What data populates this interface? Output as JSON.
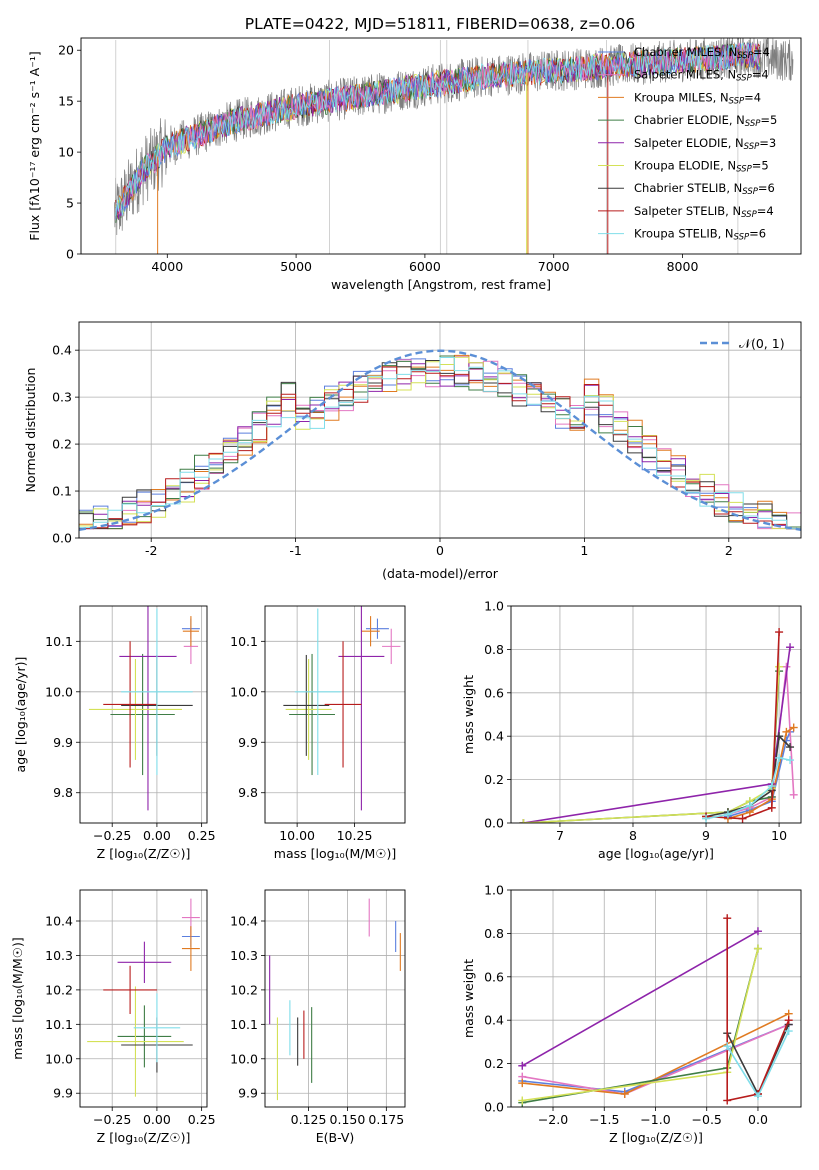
{
  "title": "PLATE=0422, MJD=51811, FIBERID=0638, z=0.06",
  "colors": {
    "Chabrier MILES": "#5b7fde",
    "Salpeter MILES": "#e377c2",
    "Kroupa MILES": "#e07b22",
    "Chabrier ELODIE": "#3f7d46",
    "Salpeter ELODIE": "#8e24aa",
    "Kroupa ELODIE": "#d4e157",
    "Chabrier STELIB": "#3a3a3a",
    "Salpeter STELIB": "#b71c1c",
    "Kroupa STELIB": "#80deea",
    "gaussian": "#5b8fd6",
    "grid": "#b0b0b0"
  },
  "chart_data": [
    {
      "type": "line",
      "name": "spectrum",
      "xlabel": "wavelength [Angstrom, rest frame]",
      "ylabel": "Flux [fλ10⁻¹⁷ erg cm⁻² s⁻¹ A⁻¹]",
      "xlim": [
        3330,
        8920
      ],
      "ylim": [
        0,
        21.2
      ],
      "xticks": [
        4000,
        5000,
        6000,
        7000,
        8000
      ],
      "yticks": [
        0,
        5,
        10,
        15,
        20
      ],
      "grid": false,
      "legend_position": "right",
      "data_trend": {
        "x": [
          3600,
          3800,
          4000,
          4200,
          4500,
          5000,
          5500,
          6000,
          6500,
          7000,
          7500,
          8000,
          8500,
          8800
        ],
        "y": [
          4,
          8,
          10.5,
          11.5,
          13,
          14.5,
          15.5,
          16.5,
          17.5,
          18,
          18.5,
          19,
          19.5,
          19
        ]
      },
      "series": [
        {
          "name": "Chabrier MILES, N_SSP=4"
        },
        {
          "name": "Salpeter MILES, N_SSP=4"
        },
        {
          "name": "Kroupa MILES, N_SSP=4"
        },
        {
          "name": "Chabrier ELODIE, N_SSP=5"
        },
        {
          "name": "Salpeter ELODIE, N_SSP=3"
        },
        {
          "name": "Kroupa ELODIE, N_SSP=5"
        },
        {
          "name": "Chabrier STELIB, N_SSP=6"
        },
        {
          "name": "Salpeter STELIB, N_SSP=4"
        },
        {
          "name": "Kroupa STELIB, N_SSP=6"
        }
      ]
    },
    {
      "type": "histogram",
      "name": "residuals",
      "xlabel": "(data-model)/error",
      "ylabel": "Normed distribution",
      "xlim": [
        -2.5,
        2.5
      ],
      "ylim": [
        0,
        0.46
      ],
      "xticks": [
        -2,
        -1,
        0,
        1,
        2
      ],
      "yticks": [
        0.0,
        0.1,
        0.2,
        0.3,
        0.4
      ],
      "grid": true,
      "legend": [
        {
          "name": "𝒩(0, 1)",
          "style": "dashed"
        }
      ],
      "legend_position": "upper right",
      "bin_width": 0.1
    },
    {
      "type": "errorbar",
      "name": "age-vs-Z",
      "xlabel": "Z [log₁₀(Z/Z☉)]",
      "ylabel": "age  [log₁₀(age/yr)]",
      "xlim": [
        -0.43,
        0.28
      ],
      "ylim": [
        9.74,
        10.17
      ],
      "xticks": [
        -0.25,
        0.0,
        0.25
      ],
      "xticklabels": [
        "−0.25",
        "0.00",
        "0.25"
      ],
      "yticks": [
        9.8,
        9.9,
        10.0,
        10.1
      ],
      "grid": true,
      "points": [
        {
          "series": "Chabrier MILES",
          "x": 0.19,
          "y": 10.125,
          "xerr": 0.05,
          "yerr": 0.02
        },
        {
          "series": "Salpeter MILES",
          "x": 0.19,
          "y": 10.09,
          "xerr": 0.04,
          "yerr": 0.035
        },
        {
          "series": "Kroupa MILES",
          "x": 0.19,
          "y": 10.12,
          "xerr": 0.045,
          "yerr": 0.03
        },
        {
          "series": "Chabrier ELODIE",
          "x": -0.08,
          "y": 9.955,
          "xerr": 0.18,
          "yerr": 0.12
        },
        {
          "series": "Salpeter ELODIE",
          "x": -0.05,
          "y": 10.07,
          "xerr": 0.16,
          "yerr": 0.305
        },
        {
          "series": "Kroupa ELODIE",
          "x": -0.12,
          "y": 9.965,
          "xerr": 0.26,
          "yerr": 0.1
        },
        {
          "series": "Chabrier STELIB",
          "x": 0.0,
          "y": 9.973,
          "xerr": 0.2,
          "yerr": 0.1
        },
        {
          "series": "Salpeter STELIB",
          "x": -0.15,
          "y": 9.975,
          "xerr": 0.15,
          "yerr": 0.125
        },
        {
          "series": "Kroupa STELIB",
          "x": 0.0,
          "y": 10.0,
          "xerr": 0.2,
          "yerr": 0.165
        }
      ]
    },
    {
      "type": "errorbar",
      "name": "age-vs-mass",
      "xlabel": "mass [log₁₀(M/M☉)]",
      "ylabel": "",
      "xlim": [
        9.86,
        10.47
      ],
      "ylim": [
        9.74,
        10.17
      ],
      "xticks": [
        10.0,
        10.25
      ],
      "xticklabels": [
        "10.00",
        "10.25"
      ],
      "yticks": [
        9.8,
        9.9,
        10.0,
        10.1
      ],
      "grid": true,
      "points": [
        {
          "series": "Chabrier MILES",
          "x": 10.35,
          "y": 10.125,
          "xerr": 0.05,
          "yerr": 0.02
        },
        {
          "series": "Salpeter MILES",
          "x": 10.41,
          "y": 10.09,
          "xerr": 0.04,
          "yerr": 0.035
        },
        {
          "series": "Kroupa MILES",
          "x": 10.32,
          "y": 10.12,
          "xerr": 0.04,
          "yerr": 0.03
        },
        {
          "series": "Chabrier ELODIE",
          "x": 10.065,
          "y": 9.955,
          "xerr": 0.1,
          "yerr": 0.12
        },
        {
          "series": "Salpeter ELODIE",
          "x": 10.28,
          "y": 10.07,
          "xerr": 0.1,
          "yerr": 0.305
        },
        {
          "series": "Kroupa ELODIE",
          "x": 10.05,
          "y": 9.965,
          "xerr": 0.1,
          "yerr": 0.1
        },
        {
          "series": "Chabrier STELIB",
          "x": 10.04,
          "y": 9.973,
          "xerr": 0.1,
          "yerr": 0.1
        },
        {
          "series": "Salpeter STELIB",
          "x": 10.2,
          "y": 9.975,
          "xerr": 0.08,
          "yerr": 0.125
        },
        {
          "series": "Kroupa STELIB",
          "x": 10.09,
          "y": 10.0,
          "xerr": 0.1,
          "yerr": 0.165
        }
      ]
    },
    {
      "type": "line",
      "name": "weight-vs-age",
      "xlabel": "age  [log₁₀(age/yr)]",
      "ylabel": "mass weight",
      "xlim": [
        6.33,
        10.3
      ],
      "ylim": [
        0,
        1.0
      ],
      "xticks": [
        7,
        8,
        9,
        10
      ],
      "yticks": [
        0.0,
        0.2,
        0.4,
        0.6,
        0.8,
        1.0
      ],
      "grid": true,
      "series": [
        {
          "name": "Chabrier MILES",
          "x": [
            9.3,
            9.6,
            9.9,
            10.1,
            10.15
          ],
          "y": [
            0.03,
            0.06,
            0.1,
            0.38,
            0.42
          ]
        },
        {
          "name": "Salpeter MILES",
          "x": [
            9.3,
            9.6,
            9.9,
            10.1,
            10.2
          ],
          "y": [
            0.04,
            0.07,
            0.12,
            0.72,
            0.13
          ]
        },
        {
          "name": "Kroupa MILES",
          "x": [
            9.3,
            9.6,
            9.9,
            10.1,
            10.2
          ],
          "y": [
            0.02,
            0.05,
            0.11,
            0.42,
            0.44
          ]
        },
        {
          "name": "Chabrier ELODIE",
          "x": [
            6.5,
            9.3,
            9.6,
            9.9,
            10.0
          ],
          "y": [
            0.0,
            0.05,
            0.1,
            0.12,
            0.7
          ]
        },
        {
          "name": "Salpeter ELODIE",
          "x": [
            6.5,
            9.9,
            10.15
          ],
          "y": [
            0.0,
            0.18,
            0.81
          ]
        },
        {
          "name": "Kroupa ELODIE",
          "x": [
            6.5,
            9.3,
            9.6,
            9.9,
            10.0
          ],
          "y": [
            0.0,
            0.05,
            0.1,
            0.16,
            0.72
          ]
        },
        {
          "name": "Chabrier STELIB",
          "x": [
            9.0,
            9.3,
            9.6,
            9.9,
            10.0,
            10.15
          ],
          "y": [
            0.03,
            0.05,
            0.08,
            0.15,
            0.4,
            0.35
          ]
        },
        {
          "name": "Salpeter STELIB",
          "x": [
            9.0,
            9.5,
            9.9,
            10.0
          ],
          "y": [
            0.03,
            0.02,
            0.07,
            0.88
          ]
        },
        {
          "name": "Kroupa STELIB",
          "x": [
            9.0,
            9.3,
            9.6,
            9.9,
            10.0,
            10.15
          ],
          "y": [
            0.02,
            0.04,
            0.08,
            0.17,
            0.3,
            0.29
          ]
        }
      ]
    },
    {
      "type": "errorbar",
      "name": "mass-vs-Z",
      "xlabel": "Z [log₁₀(Z/Z☉)]",
      "ylabel": "mass [log₁₀(M/M☉)]",
      "xlim": [
        -0.43,
        0.28
      ],
      "ylim": [
        9.86,
        10.49
      ],
      "xticks": [
        -0.25,
        0.0,
        0.25
      ],
      "xticklabels": [
        "−0.25",
        "0.00",
        "0.25"
      ],
      "yticks": [
        9.9,
        10.0,
        10.1,
        10.2,
        10.3,
        10.4
      ],
      "grid": true,
      "points": [
        {
          "series": "Chabrier MILES",
          "x": 0.19,
          "y": 10.355,
          "xerr": 0.05,
          "yerr": 0.03
        },
        {
          "series": "Salpeter MILES",
          "x": 0.19,
          "y": 10.41,
          "xerr": 0.05,
          "yerr": 0.055
        },
        {
          "series": "Kroupa MILES",
          "x": 0.19,
          "y": 10.32,
          "xerr": 0.05,
          "yerr": 0.065
        },
        {
          "series": "Chabrier ELODIE",
          "x": -0.07,
          "y": 10.065,
          "xerr": 0.15,
          "yerr": 0.09
        },
        {
          "series": "Salpeter ELODIE",
          "x": -0.07,
          "y": 10.28,
          "xerr": 0.15,
          "yerr": 0.06
        },
        {
          "series": "Kroupa ELODIE",
          "x": -0.12,
          "y": 10.05,
          "xerr": 0.27,
          "yerr": 0.16
        },
        {
          "series": "Chabrier STELIB",
          "x": 0.0,
          "y": 10.04,
          "xerr": 0.2,
          "yerr": 0.08
        },
        {
          "series": "Salpeter STELIB",
          "x": -0.15,
          "y": 10.2,
          "xerr": 0.15,
          "yerr": 0.07
        },
        {
          "series": "Kroupa STELIB",
          "x": 0.0,
          "y": 10.09,
          "xerr": 0.13,
          "yerr": 0.1
        }
      ]
    },
    {
      "type": "errorbar",
      "name": "mass-vs-EBV",
      "xlabel": "E(B-V)",
      "ylabel": "",
      "xlim": [
        0.097,
        0.187
      ],
      "ylim": [
        9.86,
        10.49
      ],
      "xticks": [
        0.125,
        0.15,
        0.175
      ],
      "xticklabels": [
        "0.125",
        "0.150",
        "0.175"
      ],
      "yticks": [
        9.9,
        10.0,
        10.1,
        10.2,
        10.3,
        10.4
      ],
      "grid": true,
      "points": [
        {
          "series": "Chabrier MILES",
          "x": 0.181,
          "y": 10.355,
          "xerr": 0,
          "yerr": 0.045
        },
        {
          "series": "Salpeter MILES",
          "x": 0.164,
          "y": 10.41,
          "xerr": 0,
          "yerr": 0.055
        },
        {
          "series": "Kroupa MILES",
          "x": 0.184,
          "y": 10.31,
          "xerr": 0,
          "yerr": 0.055
        },
        {
          "series": "Chabrier ELODIE",
          "x": 0.127,
          "y": 10.04,
          "xerr": 0,
          "yerr": 0.11
        },
        {
          "series": "Salpeter ELODIE",
          "x": 0.1,
          "y": 10.2,
          "xerr": 0,
          "yerr": 0.1
        },
        {
          "series": "Kroupa ELODIE",
          "x": 0.105,
          "y": 10.0,
          "xerr": 0,
          "yerr": 0.12
        },
        {
          "series": "Chabrier STELIB",
          "x": 0.118,
          "y": 10.05,
          "xerr": 0,
          "yerr": 0.07
        },
        {
          "series": "Salpeter STELIB",
          "x": 0.122,
          "y": 10.07,
          "xerr": 0,
          "yerr": 0.07
        },
        {
          "series": "Kroupa STELIB",
          "x": 0.113,
          "y": 10.09,
          "xerr": 0,
          "yerr": 0.08
        }
      ]
    },
    {
      "type": "line",
      "name": "weight-vs-Z",
      "xlabel": "Z [log₁₀(Z/Z☉)]",
      "ylabel": "mass weight",
      "xlim": [
        -2.41,
        0.42
      ],
      "ylim": [
        0,
        1.0
      ],
      "xticks": [
        -2.0,
        -1.5,
        -1.0,
        -0.5,
        0.0
      ],
      "xticklabels": [
        "−2.0",
        "−1.5",
        "−1.0",
        "−0.5",
        "0.0"
      ],
      "yticks": [
        0.0,
        0.2,
        0.4,
        0.6,
        0.8,
        1.0
      ],
      "grid": true,
      "series": [
        {
          "name": "Chabrier MILES",
          "x": [
            -2.3,
            -1.3,
            0.3
          ],
          "y": [
            0.12,
            0.07,
            0.38
          ]
        },
        {
          "name": "Salpeter MILES",
          "x": [
            -2.3,
            -1.3,
            0.3
          ],
          "y": [
            0.14,
            0.06,
            0.38
          ]
        },
        {
          "name": "Kroupa MILES",
          "x": [
            -2.3,
            -1.3,
            0.3
          ],
          "y": [
            0.11,
            0.06,
            0.43
          ]
        },
        {
          "name": "Chabrier ELODIE",
          "x": [
            -2.3,
            -0.3,
            0.0
          ],
          "y": [
            0.02,
            0.18,
            0.73
          ]
        },
        {
          "name": "Salpeter ELODIE",
          "x": [
            -2.3,
            0.0
          ],
          "y": [
            0.19,
            0.81
          ]
        },
        {
          "name": "Kroupa ELODIE",
          "x": [
            -2.3,
            -0.3,
            0.0
          ],
          "y": [
            0.03,
            0.16,
            0.73
          ]
        },
        {
          "name": "Chabrier STELIB",
          "x": [
            -0.3,
            0.0,
            0.3
          ],
          "y": [
            0.34,
            0.06,
            0.38
          ]
        },
        {
          "name": "Salpeter STELIB",
          "x": [
            -0.3,
            -0.3,
            0.0,
            0.3
          ],
          "y": [
            0.87,
            0.03,
            0.06,
            0.4
          ]
        },
        {
          "name": "Kroupa STELIB",
          "x": [
            -0.3,
            0.0,
            0.3
          ],
          "y": [
            0.28,
            0.05,
            0.35
          ]
        }
      ]
    }
  ]
}
